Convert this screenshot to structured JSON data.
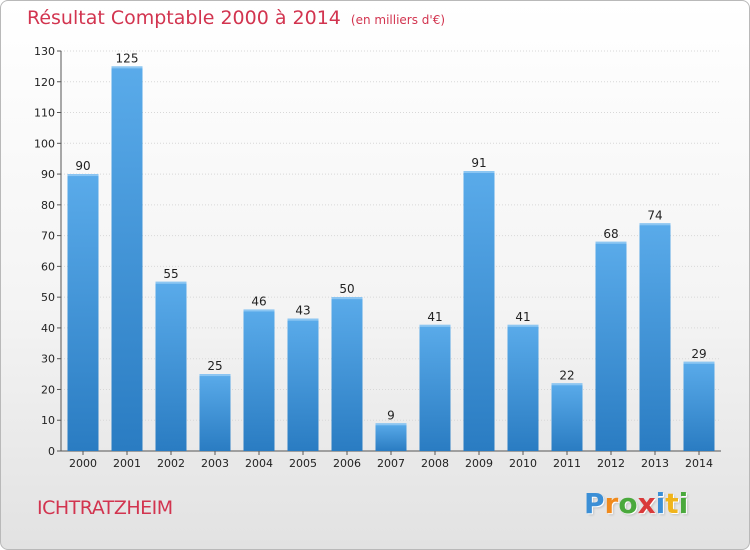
{
  "chart_data": {
    "type": "bar",
    "title": "Résultat Comptable 2000 à 2014",
    "subtitle": "(en milliers d'€)",
    "categories": [
      "2000",
      "2001",
      "2002",
      "2003",
      "2004",
      "2005",
      "2006",
      "2007",
      "2008",
      "2009",
      "2010",
      "2011",
      "2012",
      "2013",
      "2014"
    ],
    "values": [
      90,
      125,
      55,
      25,
      46,
      43,
      50,
      9,
      41,
      91,
      41,
      22,
      68,
      74,
      29
    ],
    "ylim": [
      0,
      130
    ],
    "yticks": [
      0,
      10,
      20,
      30,
      40,
      50,
      60,
      70,
      80,
      90,
      100,
      110,
      120,
      130
    ],
    "xlabel": "",
    "ylabel": "",
    "grid": true,
    "bar_color_light": "#5aabea",
    "bar_color_dark": "#2a7cc2"
  },
  "footer": {
    "commune": "ICHTRATZHEIM",
    "logo_letters": [
      "P",
      "r",
      "o",
      "x",
      "i",
      "t",
      "i"
    ],
    "logo_colors": [
      "#3b8fd6",
      "#f08a1c",
      "#4aa93c",
      "#d93a3a",
      "#3b8fd6",
      "#f0b41c",
      "#4aa93c"
    ]
  }
}
